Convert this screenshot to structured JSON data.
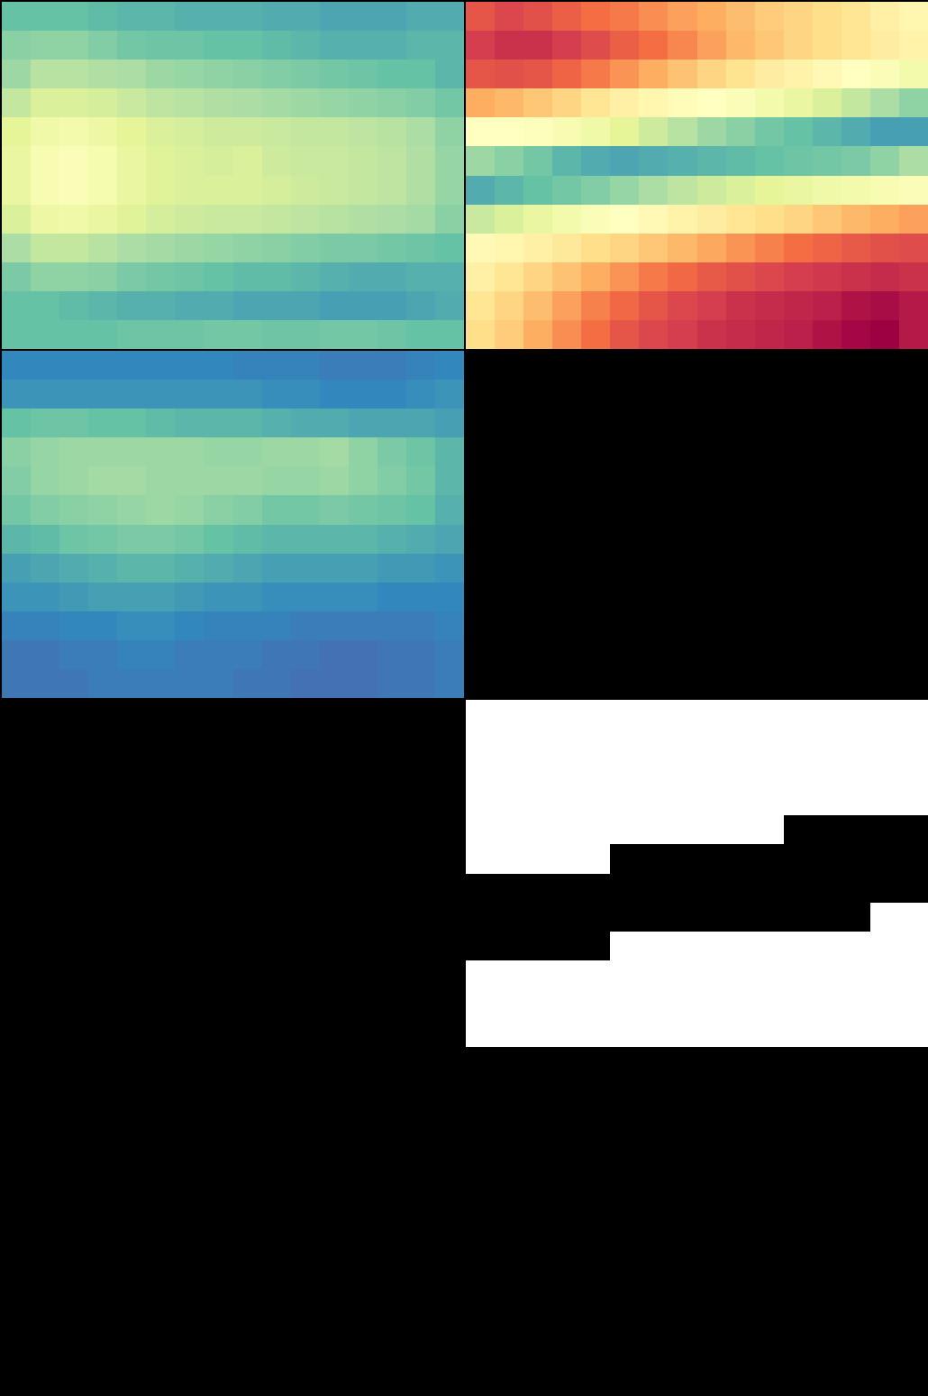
{
  "chart_data": [
    {
      "type": "heatmap",
      "color": "Spectral",
      "tick_labels": false,
      "zlim": [
        0,
        1
      ],
      "z": [
        [
          0.8,
          0.8,
          0.8,
          0.81,
          0.82,
          0.82,
          0.83,
          0.83,
          0.83,
          0.84,
          0.84,
          0.85,
          0.85,
          0.85,
          0.84,
          0.84
        ],
        [
          0.75,
          0.74,
          0.74,
          0.76,
          0.78,
          0.79,
          0.79,
          0.8,
          0.8,
          0.81,
          0.82,
          0.83,
          0.83,
          0.83,
          0.82,
          0.82
        ],
        [
          0.72,
          0.68,
          0.68,
          0.69,
          0.7,
          0.72,
          0.73,
          0.74,
          0.75,
          0.76,
          0.77,
          0.78,
          0.79,
          0.8,
          0.8,
          0.82
        ],
        [
          0.66,
          0.62,
          0.62,
          0.63,
          0.65,
          0.67,
          0.68,
          0.69,
          0.7,
          0.71,
          0.72,
          0.73,
          0.74,
          0.75,
          0.76,
          0.78
        ],
        [
          0.6,
          0.56,
          0.55,
          0.57,
          0.6,
          0.62,
          0.63,
          0.64,
          0.64,
          0.65,
          0.66,
          0.66,
          0.67,
          0.68,
          0.7,
          0.74
        ],
        [
          0.58,
          0.53,
          0.52,
          0.54,
          0.58,
          0.61,
          0.62,
          0.63,
          0.62,
          0.64,
          0.65,
          0.65,
          0.66,
          0.67,
          0.69,
          0.73
        ],
        [
          0.58,
          0.53,
          0.52,
          0.54,
          0.58,
          0.61,
          0.62,
          0.62,
          0.62,
          0.63,
          0.64,
          0.65,
          0.66,
          0.67,
          0.69,
          0.73
        ],
        [
          0.62,
          0.57,
          0.56,
          0.58,
          0.61,
          0.63,
          0.64,
          0.65,
          0.65,
          0.66,
          0.67,
          0.68,
          0.69,
          0.7,
          0.71,
          0.75
        ],
        [
          0.7,
          0.66,
          0.66,
          0.68,
          0.7,
          0.71,
          0.72,
          0.73,
          0.74,
          0.75,
          0.76,
          0.77,
          0.77,
          0.78,
          0.79,
          0.8
        ],
        [
          0.77,
          0.74,
          0.74,
          0.75,
          0.77,
          0.78,
          0.79,
          0.8,
          0.81,
          0.81,
          0.82,
          0.83,
          0.84,
          0.84,
          0.83,
          0.83
        ],
        [
          0.8,
          0.8,
          0.81,
          0.82,
          0.83,
          0.83,
          0.84,
          0.84,
          0.85,
          0.85,
          0.85,
          0.86,
          0.86,
          0.86,
          0.85,
          0.84
        ],
        [
          0.8,
          0.8,
          0.8,
          0.8,
          0.79,
          0.79,
          0.79,
          0.78,
          0.78,
          0.79,
          0.79,
          0.78,
          0.78,
          0.79,
          0.8,
          0.8
        ]
      ]
    },
    {
      "type": "heatmap",
      "color": "Spectral",
      "tick_labels": false,
      "zlim": [
        0,
        1
      ],
      "z": [
        [
          0.15,
          0.12,
          0.14,
          0.17,
          0.2,
          0.22,
          0.25,
          0.28,
          0.3,
          0.33,
          0.36,
          0.38,
          0.4,
          0.42,
          0.45,
          0.47
        ],
        [
          0.1,
          0.08,
          0.08,
          0.1,
          0.13,
          0.17,
          0.2,
          0.24,
          0.28,
          0.32,
          0.35,
          0.38,
          0.4,
          0.42,
          0.44,
          0.46
        ],
        [
          0.15,
          0.14,
          0.15,
          0.18,
          0.22,
          0.26,
          0.3,
          0.34,
          0.38,
          0.41,
          0.44,
          0.46,
          0.48,
          0.5,
          0.52,
          0.55
        ],
        [
          0.3,
          0.32,
          0.35,
          0.38,
          0.42,
          0.45,
          0.47,
          0.49,
          0.5,
          0.52,
          0.55,
          0.58,
          0.62,
          0.66,
          0.7,
          0.74
        ],
        [
          0.5,
          0.5,
          0.51,
          0.53,
          0.56,
          0.6,
          0.64,
          0.68,
          0.72,
          0.75,
          0.78,
          0.8,
          0.82,
          0.84,
          0.86,
          0.86
        ],
        [
          0.72,
          0.75,
          0.78,
          0.82,
          0.84,
          0.85,
          0.84,
          0.83,
          0.82,
          0.81,
          0.8,
          0.79,
          0.78,
          0.77,
          0.74,
          0.7
        ],
        [
          0.84,
          0.82,
          0.8,
          0.78,
          0.76,
          0.73,
          0.7,
          0.67,
          0.64,
          0.62,
          0.6,
          0.58,
          0.56,
          0.55,
          0.53,
          0.52
        ],
        [
          0.65,
          0.62,
          0.58,
          0.55,
          0.52,
          0.5,
          0.48,
          0.46,
          0.44,
          0.42,
          0.4,
          0.38,
          0.35,
          0.32,
          0.3,
          0.28
        ],
        [
          0.48,
          0.47,
          0.45,
          0.43,
          0.4,
          0.38,
          0.35,
          0.32,
          0.29,
          0.26,
          0.23,
          0.2,
          0.18,
          0.16,
          0.14,
          0.13
        ],
        [
          0.45,
          0.42,
          0.38,
          0.34,
          0.3,
          0.26,
          0.22,
          0.19,
          0.16,
          0.14,
          0.12,
          0.1,
          0.09,
          0.08,
          0.07,
          0.08
        ],
        [
          0.42,
          0.38,
          0.33,
          0.28,
          0.23,
          0.19,
          0.15,
          0.12,
          0.1,
          0.08,
          0.07,
          0.06,
          0.05,
          0.03,
          0.02,
          0.04
        ],
        [
          0.4,
          0.36,
          0.3,
          0.25,
          0.2,
          0.15,
          0.12,
          0.1,
          0.08,
          0.07,
          0.06,
          0.05,
          0.03,
          0.01,
          0.0,
          0.04
        ]
      ]
    },
    {
      "type": "heatmap",
      "color": "Spectral",
      "tick_labels": false,
      "zlim": [
        0,
        1
      ],
      "z": [
        [
          0.9,
          0.9,
          0.9,
          0.9,
          0.9,
          0.9,
          0.9,
          0.9,
          0.91,
          0.91,
          0.91,
          0.92,
          0.92,
          0.92,
          0.91,
          0.9
        ],
        [
          0.88,
          0.88,
          0.88,
          0.88,
          0.88,
          0.88,
          0.88,
          0.88,
          0.88,
          0.89,
          0.89,
          0.9,
          0.9,
          0.9,
          0.89,
          0.88
        ],
        [
          0.8,
          0.79,
          0.79,
          0.8,
          0.8,
          0.81,
          0.82,
          0.82,
          0.82,
          0.83,
          0.84,
          0.84,
          0.85,
          0.85,
          0.85,
          0.86
        ],
        [
          0.75,
          0.73,
          0.72,
          0.72,
          0.72,
          0.72,
          0.72,
          0.73,
          0.73,
          0.72,
          0.72,
          0.71,
          0.74,
          0.77,
          0.79,
          0.82
        ],
        [
          0.76,
          0.73,
          0.72,
          0.71,
          0.71,
          0.72,
          0.72,
          0.72,
          0.72,
          0.73,
          0.73,
          0.72,
          0.74,
          0.76,
          0.78,
          0.82
        ],
        [
          0.78,
          0.76,
          0.75,
          0.74,
          0.73,
          0.72,
          0.73,
          0.75,
          0.76,
          0.78,
          0.78,
          0.77,
          0.78,
          0.79,
          0.8,
          0.83
        ],
        [
          0.82,
          0.81,
          0.79,
          0.78,
          0.77,
          0.77,
          0.78,
          0.8,
          0.81,
          0.82,
          0.82,
          0.82,
          0.82,
          0.83,
          0.84,
          0.85
        ],
        [
          0.86,
          0.85,
          0.84,
          0.83,
          0.82,
          0.82,
          0.83,
          0.84,
          0.85,
          0.86,
          0.86,
          0.86,
          0.86,
          0.87,
          0.87,
          0.88
        ],
        [
          0.88,
          0.88,
          0.87,
          0.86,
          0.86,
          0.86,
          0.87,
          0.88,
          0.88,
          0.89,
          0.89,
          0.89,
          0.89,
          0.9,
          0.9,
          0.9
        ],
        [
          0.91,
          0.91,
          0.9,
          0.9,
          0.89,
          0.89,
          0.9,
          0.91,
          0.91,
          0.91,
          0.92,
          0.92,
          0.92,
          0.92,
          0.92,
          0.91
        ],
        [
          0.93,
          0.93,
          0.92,
          0.92,
          0.91,
          0.91,
          0.92,
          0.92,
          0.92,
          0.93,
          0.93,
          0.94,
          0.94,
          0.93,
          0.93,
          0.92
        ],
        [
          0.93,
          0.93,
          0.93,
          0.92,
          0.92,
          0.92,
          0.92,
          0.92,
          0.93,
          0.93,
          0.94,
          0.94,
          0.94,
          0.93,
          0.93,
          0.92
        ]
      ]
    },
    {
      "type": "empty"
    },
    {
      "type": "empty"
    },
    {
      "type": "heatmap",
      "color": "gray",
      "tick_labels": false,
      "zlim": [
        0,
        1
      ],
      "z": [
        [
          1,
          1,
          1,
          1,
          1,
          1,
          1,
          1,
          1,
          1,
          1,
          1,
          1,
          1,
          1,
          1
        ],
        [
          1,
          1,
          1,
          1,
          1,
          1,
          1,
          1,
          1,
          1,
          1,
          1,
          1,
          1,
          1,
          1
        ],
        [
          1,
          1,
          1,
          1,
          1,
          1,
          1,
          1,
          1,
          1,
          1,
          1,
          1,
          1,
          1,
          1
        ],
        [
          1,
          1,
          1,
          1,
          1,
          1,
          1,
          1,
          1,
          1,
          1,
          1,
          1,
          1,
          1,
          1
        ],
        [
          1,
          1,
          1,
          1,
          1,
          1,
          1,
          1,
          1,
          1,
          1,
          0,
          0,
          0,
          0,
          0
        ],
        [
          1,
          1,
          1,
          1,
          1,
          0,
          0,
          0,
          0,
          0,
          0,
          0,
          0,
          0,
          0,
          0
        ],
        [
          0,
          0,
          0,
          0,
          0,
          0,
          0,
          0,
          0,
          0,
          0,
          0,
          0,
          0,
          0,
          0
        ],
        [
          0,
          0,
          0,
          0,
          0,
          0,
          0,
          0,
          0,
          0,
          0,
          0,
          0,
          0,
          1,
          1
        ],
        [
          0,
          0,
          0,
          0,
          0,
          1,
          1,
          1,
          1,
          1,
          1,
          1,
          1,
          1,
          1,
          1
        ],
        [
          1,
          1,
          1,
          1,
          1,
          1,
          1,
          1,
          1,
          1,
          1,
          1,
          1,
          1,
          1,
          1
        ],
        [
          1,
          1,
          1,
          1,
          1,
          1,
          1,
          1,
          1,
          1,
          1,
          1,
          1,
          1,
          1,
          1
        ],
        [
          1,
          1,
          1,
          1,
          1,
          1,
          1,
          1,
          1,
          1,
          1,
          1,
          1,
          1,
          1,
          1
        ]
      ]
    },
    {
      "type": "empty"
    },
    {
      "type": "empty"
    }
  ]
}
